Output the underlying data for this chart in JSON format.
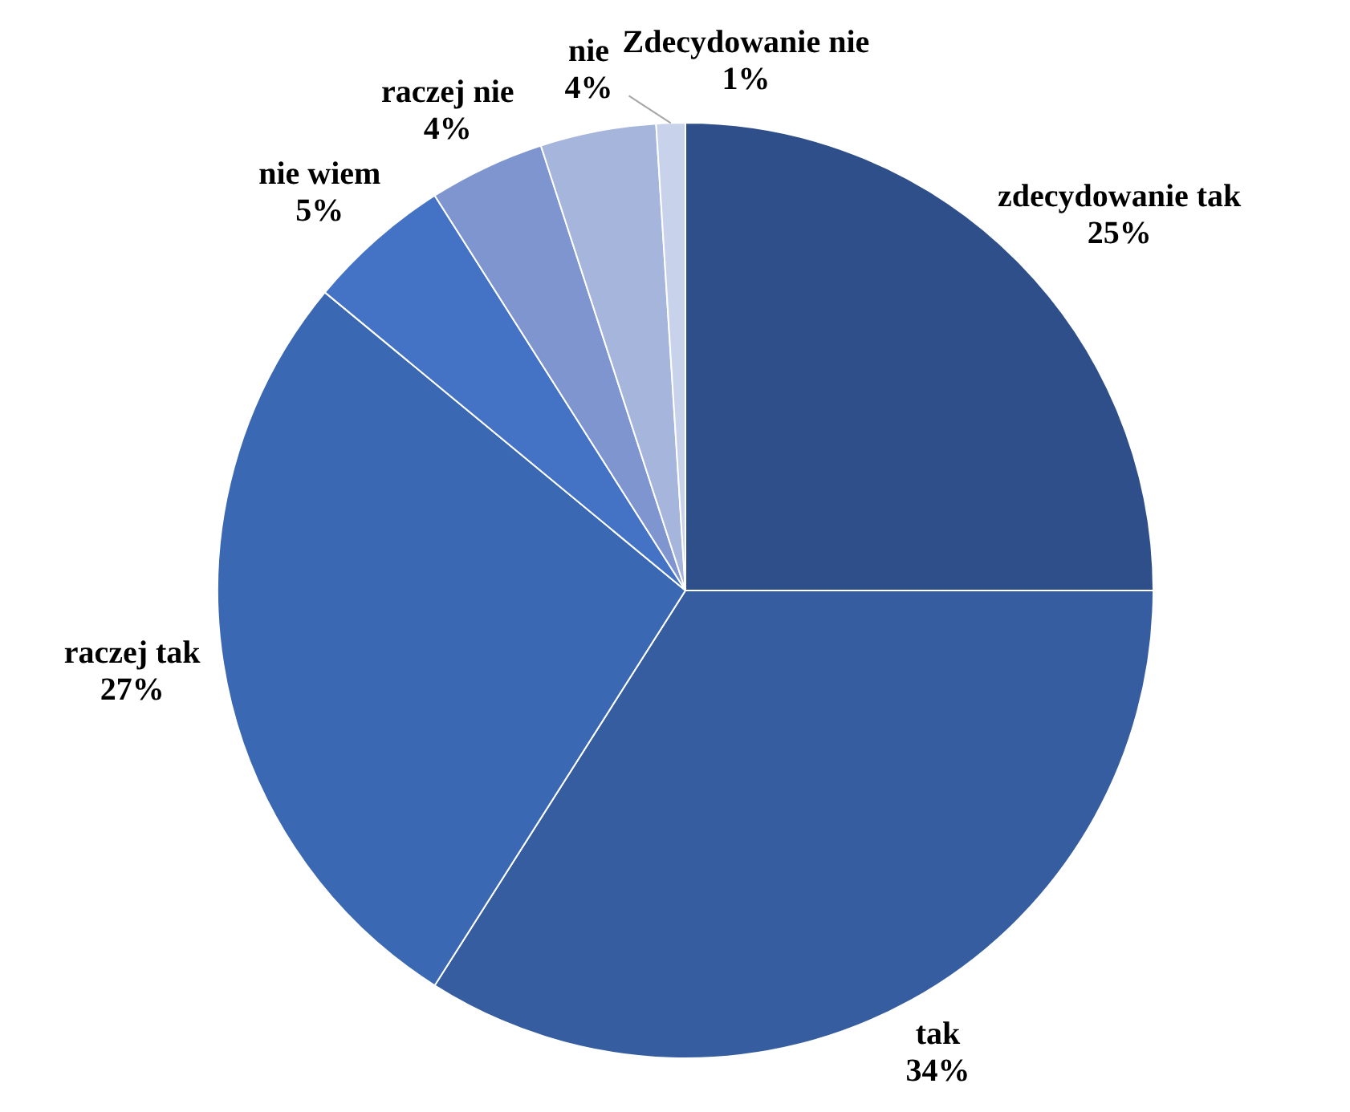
{
  "chart_data": {
    "type": "pie",
    "categories": [
      "zdecydowanie tak",
      "tak",
      "raczej tak",
      "nie wiem",
      "raczej nie",
      "nie",
      "Zdecydowanie nie"
    ],
    "values": [
      25,
      34,
      27,
      5,
      4,
      4,
      1
    ],
    "value_labels": [
      "25%",
      "34%",
      "27%",
      "5%",
      "4%",
      "4%",
      "1%"
    ],
    "colors": [
      "#2f4f8a",
      "#365d9f",
      "#3b68b3",
      "#4472c4",
      "#7e95cf",
      "#a6b5dc",
      "#c8d2eb"
    ],
    "legend": false
  }
}
